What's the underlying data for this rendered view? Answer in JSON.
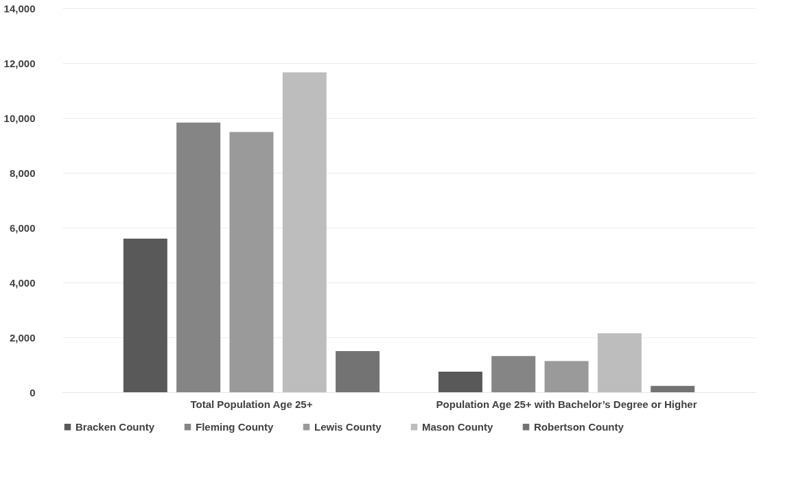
{
  "chart_data": {
    "type": "bar",
    "categories": [
      "Total Population Age 25+",
      "Population Age 25+ with Bachelor’s Degree or Higher"
    ],
    "series": [
      {
        "name": "Bracken County",
        "color": "#595959",
        "values": [
          5600,
          750
        ]
      },
      {
        "name": "Fleming County",
        "color": "#858585",
        "values": [
          9830,
          1320
        ]
      },
      {
        "name": "Lewis County",
        "color": "#9a9a9a",
        "values": [
          9490,
          1140
        ]
      },
      {
        "name": "Mason County",
        "color": "#bdbdbd",
        "values": [
          11660,
          2150
        ]
      },
      {
        "name": "Robertson County",
        "color": "#737373",
        "values": [
          1500,
          230
        ]
      }
    ],
    "ylim": [
      0,
      14000
    ],
    "yticks": [
      0,
      {
        "value": 2000,
        "label": "2,000"
      },
      {
        "value": 4000,
        "label": "4,000"
      },
      {
        "value": 6000,
        "label": "6,000"
      },
      {
        "value": 8000,
        "label": "8,000"
      },
      {
        "value": 10000,
        "label": "10,000"
      },
      {
        "value": 12000,
        "label": "12,000"
      },
      {
        "value": 14000,
        "label": "14,000"
      }
    ],
    "grid": "y",
    "legend": "bottom"
  }
}
